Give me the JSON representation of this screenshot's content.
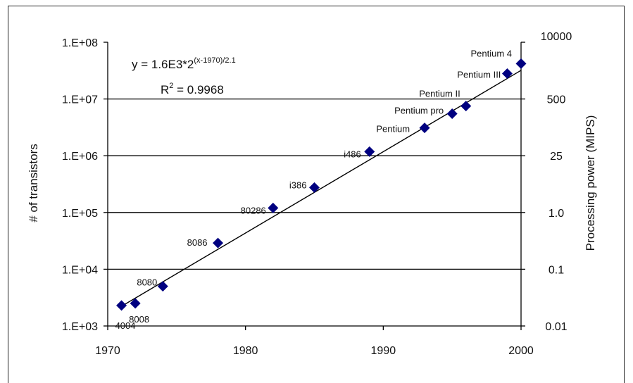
{
  "chart_data": {
    "type": "scatter",
    "xlabel": "",
    "ylabel": "# of transistors",
    "y2label": "Processing power (MIPS)",
    "xlim": [
      1970,
      2000
    ],
    "xticks": [
      "1970",
      "1980",
      "1990",
      "2000"
    ],
    "ylim": [
      1000,
      100000000
    ],
    "yscale": "log",
    "yticks": [
      "1.E+03",
      "1.E+04",
      "1.E+05",
      "1.E+06",
      "1.E+07",
      "1.E+08"
    ],
    "y2ticks": [
      "0.01",
      "0.1",
      "1.0",
      "25",
      "500",
      "10000"
    ],
    "grid": "horizontal",
    "marker_color": "#000080",
    "trend_color": "#000000",
    "equation": {
      "prefix": "y = 1.6E3*2",
      "exponent": "(x-1970)/2.1",
      "r2_label": "R",
      "r2_exp": "2",
      "r2_value": " = 0.9968"
    },
    "trendline": {
      "a": 1600,
      "base_year": 1970,
      "doubling_years": 2.1
    },
    "points": [
      {
        "x": 1971,
        "y": 2300,
        "label": "4004"
      },
      {
        "x": 1972,
        "y": 2500,
        "label": "8008"
      },
      {
        "x": 1974,
        "y": 5000,
        "label": "8080"
      },
      {
        "x": 1978,
        "y": 29000,
        "label": "8086"
      },
      {
        "x": 1982,
        "y": 120000,
        "label": "80286"
      },
      {
        "x": 1985,
        "y": 275000,
        "label": "i386"
      },
      {
        "x": 1989,
        "y": 1180000,
        "label": "i486"
      },
      {
        "x": 1993,
        "y": 3100000,
        "label": "Pentium"
      },
      {
        "x": 1995,
        "y": 5500000,
        "label": "Pentium pro"
      },
      {
        "x": 1996,
        "y": 7500000,
        "label": "Pentium II"
      },
      {
        "x": 1999,
        "y": 28000000,
        "label": "Pentium III"
      },
      {
        "x": 2000,
        "y": 42000000,
        "label": "Pentium 4"
      }
    ]
  }
}
